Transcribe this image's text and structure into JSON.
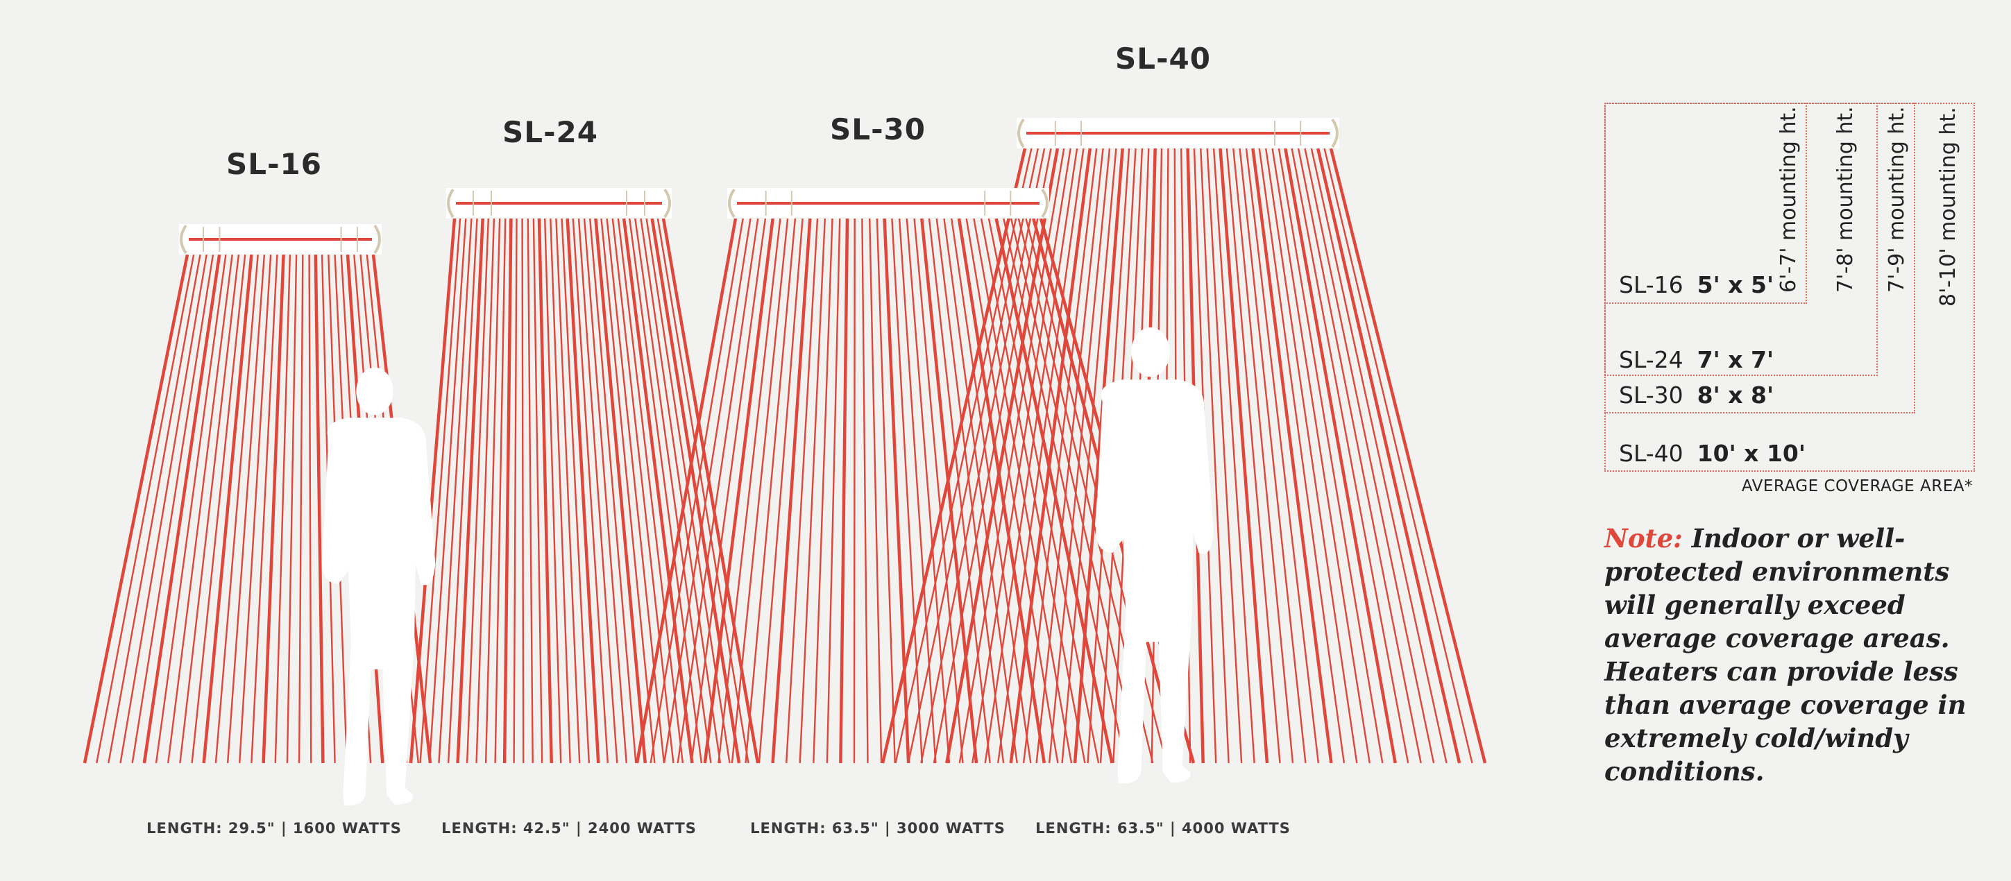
{
  "colors": {
    "background": "#f2f3f0",
    "beam": "#e0463a",
    "dotted_border": "#e26a5a",
    "heater_body": "#ffffff",
    "heater_cap": "#d4c9b0",
    "silhouette": "#ffffff",
    "note_label": "#e0463a"
  },
  "heaters": [
    {
      "model": "SL-16",
      "spec": "LENGTH: 29.5\" | 1600 WATTS"
    },
    {
      "model": "SL-24",
      "spec": "LENGTH: 42.5\" | 2400 WATTS"
    },
    {
      "model": "SL-30",
      "spec": "LENGTH: 63.5\" | 3000 WATTS"
    },
    {
      "model": "SL-40",
      "spec": "LENGTH: 63.5\" | 4000 WATTS"
    }
  ],
  "coverage": {
    "rows": [
      {
        "model": "SL-16",
        "area": "5' x 5'",
        "mounting": "6'-7' mounting ht."
      },
      {
        "model": "SL-24",
        "area": "7' x 7'",
        "mounting": "7'-8' mounting ht."
      },
      {
        "model": "SL-30",
        "area": "8' x 8'",
        "mounting": "7'-9' mounting ht."
      },
      {
        "model": "SL-40",
        "area": "10' x 10'",
        "mounting": "8'-10' mounting ht."
      }
    ],
    "caption": "AVERAGE COVERAGE AREA*"
  },
  "note": {
    "label": "Note:",
    "text": "Indoor or well-protected environments will generally exceed average coverage areas. Heaters can provide less than average coverage in extremely cold/windy conditions."
  }
}
